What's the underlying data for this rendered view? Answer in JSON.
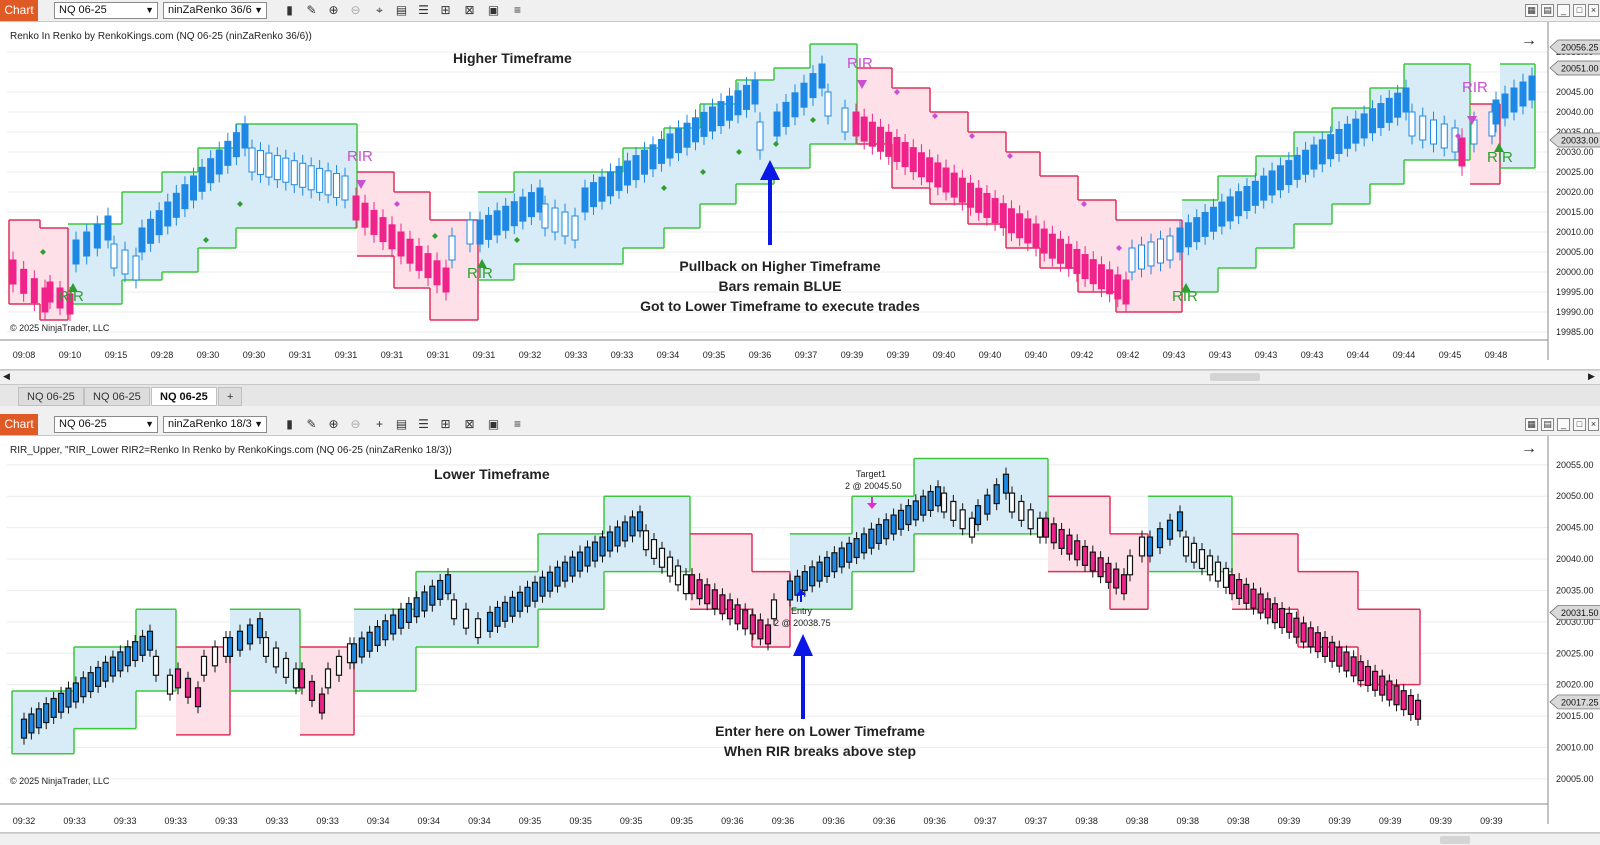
{
  "top": {
    "toolbar": {
      "chart_label": "Chart",
      "instrument": "NQ 06-25",
      "bar_type": "ninZaRenko 36/6"
    },
    "indicator_label": "Renko In Renko by RenkoKings.com (NQ 06-25 (ninZaRenko 36/6))",
    "title": "Higher Timeframe",
    "annotation": [
      "Pullback on Higher Timeframe",
      "Bars remain BLUE",
      "Got to Lower Timeframe to execute trades"
    ],
    "copyright": "© 2025 NinjaTrader, LLC",
    "rir_label": "RIR",
    "price_ticks": [
      "20055.00",
      "20050.00",
      "20045.00",
      "20040.00",
      "20035.00",
      "20030.00",
      "20025.00",
      "20020.00",
      "20015.00",
      "20010.00",
      "20005.00",
      "20000.00",
      "19995.00",
      "19990.00",
      "19985.00"
    ],
    "price_flags": [
      "20056.25",
      "20051.00",
      "20033.00"
    ],
    "time_labels": [
      "09:08",
      "09:10",
      "09:15",
      "09:28",
      "09:30",
      "09:30",
      "09:31",
      "09:31",
      "09:31",
      "09:31",
      "09:31",
      "09:32",
      "09:33",
      "09:33",
      "09:34",
      "09:35",
      "09:36",
      "09:37",
      "09:39",
      "09:39",
      "09:40",
      "09:40",
      "09:40",
      "09:42",
      "09:42",
      "09:43",
      "09:43",
      "09:43",
      "09:43",
      "09:44",
      "09:44",
      "09:45",
      "09:48"
    ]
  },
  "tabs": [
    "NQ 06-25",
    "NQ 06-25",
    "NQ 06-25"
  ],
  "tab_add": "+",
  "bottom": {
    "toolbar": {
      "chart_label": "Chart",
      "instrument": "NQ 06-25",
      "bar_type": "ninZaRenko 18/3"
    },
    "indicator_label": "RIR_Upper, \"RIR_Lower RIR2=Renko In Renko by RenkoKings.com (NQ 06-25 (ninZaRenko 18/3))",
    "title": "Lower Timeframe",
    "annotation": [
      "Enter here on Lower Timeframe",
      "When RIR breaks above step"
    ],
    "target_label": "Target1",
    "target_detail": "2 @ 20045.50",
    "entry_label": "Entry",
    "entry_detail": "2 @ 20038.75",
    "copyright": "© 2025 NinjaTrader, LLC",
    "price_ticks": [
      "20055.00",
      "20050.00",
      "20045.00",
      "20040.00",
      "20035.00",
      "20030.00",
      "20025.00",
      "20020.00",
      "20015.00",
      "20010.00",
      "20005.00"
    ],
    "price_flags": [
      "20031.50",
      "20017.25"
    ],
    "time_labels": [
      "09:32",
      "09:33",
      "09:33",
      "09:33",
      "09:33",
      "09:33",
      "09:33",
      "09:34",
      "09:34",
      "09:34",
      "09:35",
      "09:35",
      "09:35",
      "09:35",
      "09:36",
      "09:36",
      "09:36",
      "09:36",
      "09:36",
      "09:37",
      "09:37",
      "09:38",
      "09:38",
      "09:38",
      "09:38",
      "09:39",
      "09:39",
      "09:39",
      "09:39",
      "09:39"
    ]
  },
  "colors": {
    "up": "#1e88e5",
    "down": "#f0238a",
    "hollow": "#ffffff",
    "upZone": "#d7ecf6",
    "downZone": "#fde0e8",
    "upLine": "#3cc83c",
    "downLine": "#e0305a",
    "accent": "#e05a26",
    "arrow": "#0a18e6",
    "rir_up": "#2e9e2e",
    "rir_down": "#c84fd0"
  }
}
